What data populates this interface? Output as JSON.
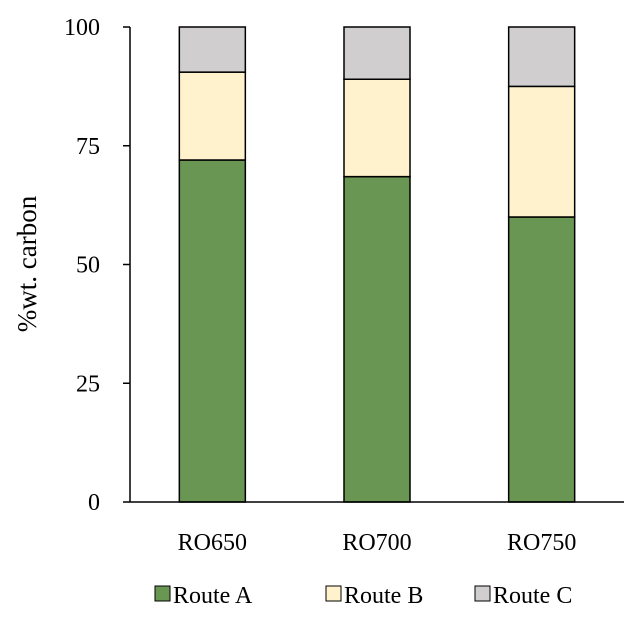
{
  "chart_data": {
    "type": "bar",
    "stacked": true,
    "title": "",
    "xlabel": "",
    "ylabel": "%wt. carbon",
    "categories": [
      "RO650",
      "RO700",
      "RO750"
    ],
    "ylim": [
      0,
      100
    ],
    "yticks": [
      0,
      25,
      50,
      75,
      100
    ],
    "grid": false,
    "legend_position": "bottom",
    "series": [
      {
        "name": "Route A",
        "values": [
          72,
          68.5,
          60
        ],
        "color": "#6a9653"
      },
      {
        "name": "Route B",
        "values": [
          18.5,
          20.5,
          27.5
        ],
        "color": "#fff2cc"
      },
      {
        "name": "Route C",
        "values": [
          9.5,
          11,
          12.5
        ],
        "color": "#d0cece"
      }
    ]
  }
}
